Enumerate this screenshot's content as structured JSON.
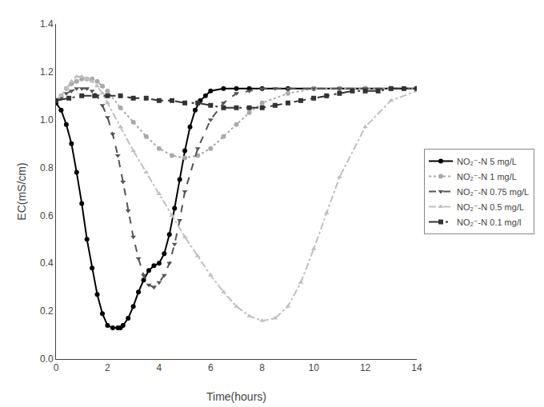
{
  "chart_data": {
    "type": "line",
    "xlabel": "Time(hours)",
    "ylabel": "EC(mS/cm)",
    "xlim": [
      0,
      14
    ],
    "ylim": [
      0.0,
      1.4
    ],
    "xticks": [
      0,
      2,
      4,
      6,
      8,
      10,
      12,
      14
    ],
    "yticks": [
      {
        "value": 0.0,
        "label": "0.0"
      },
      0.2,
      0.4,
      0.6,
      0.8,
      {
        "value": 1.0,
        "label": "1.0"
      },
      1.2,
      1.4
    ],
    "grid": false,
    "legend": "right",
    "series": [
      {
        "name": "NO₂⁻-N 5 mg/L",
        "color": "#000000",
        "line_style": "solid",
        "marker": "circle",
        "x": [
          0,
          0.2,
          0.4,
          0.6,
          0.8,
          1.0,
          1.2,
          1.4,
          1.6,
          1.8,
          2.0,
          2.2,
          2.4,
          2.5,
          2.6,
          2.8,
          3.0,
          3.2,
          3.4,
          3.6,
          3.8,
          4.0,
          4.2,
          4.4,
          4.6,
          4.8,
          5.0,
          5.2,
          5.4,
          5.6,
          5.8,
          6.0,
          6.5,
          7.0,
          7.5,
          8.0,
          9.0,
          10.0,
          11.0,
          12.0,
          13.0,
          14.0
        ],
        "values": [
          1.07,
          1.04,
          0.98,
          0.9,
          0.78,
          0.65,
          0.5,
          0.38,
          0.27,
          0.19,
          0.14,
          0.13,
          0.13,
          0.13,
          0.14,
          0.17,
          0.22,
          0.28,
          0.33,
          0.37,
          0.39,
          0.4,
          0.44,
          0.52,
          0.63,
          0.75,
          0.87,
          0.97,
          1.04,
          1.08,
          1.1,
          1.12,
          1.13,
          1.13,
          1.13,
          1.13,
          1.13,
          1.13,
          1.13,
          1.13,
          1.13,
          1.13
        ]
      },
      {
        "name": "NO₂⁻-N 1 mg/L",
        "color": "#aaaaaa",
        "line_style": "dotted",
        "marker": "circle",
        "x": [
          0,
          0.2,
          0.4,
          0.6,
          0.8,
          1.0,
          1.2,
          1.4,
          1.6,
          1.8,
          2.0,
          2.5,
          3.0,
          3.5,
          4.0,
          4.5,
          5.0,
          5.5,
          6.0,
          6.5,
          7.0,
          7.5,
          8.0,
          9.0,
          10.0,
          11.0,
          12.0,
          13.0,
          14.0
        ],
        "values": [
          1.08,
          1.1,
          1.13,
          1.15,
          1.16,
          1.17,
          1.17,
          1.17,
          1.16,
          1.14,
          1.12,
          1.05,
          0.99,
          0.93,
          0.88,
          0.85,
          0.84,
          0.85,
          0.88,
          0.93,
          0.98,
          1.03,
          1.07,
          1.11,
          1.13,
          1.13,
          1.13,
          1.13,
          1.13
        ]
      },
      {
        "name": "NO₂⁻-N 0.75 mg/L",
        "color": "#555555",
        "line_style": "dashed",
        "marker": "triangle-down",
        "x": [
          0,
          0.2,
          0.4,
          0.6,
          0.8,
          1.0,
          1.2,
          1.4,
          1.6,
          1.8,
          2.0,
          2.2,
          2.4,
          2.6,
          2.8,
          3.0,
          3.2,
          3.4,
          3.6,
          3.8,
          4.0,
          4.2,
          4.4,
          4.6,
          4.8,
          5.0,
          5.5,
          6.0,
          6.5,
          7.0,
          7.5,
          8.0,
          8.5,
          9.0,
          10.0,
          11.0,
          12.0,
          13.0,
          14.0
        ],
        "values": [
          1.08,
          1.09,
          1.11,
          1.12,
          1.13,
          1.13,
          1.13,
          1.12,
          1.1,
          1.06,
          1.01,
          0.94,
          0.85,
          0.74,
          0.62,
          0.51,
          0.42,
          0.35,
          0.31,
          0.3,
          0.32,
          0.35,
          0.4,
          0.48,
          0.58,
          0.7,
          0.88,
          1.0,
          1.07,
          1.11,
          1.12,
          1.13,
          1.13,
          1.13,
          1.13,
          1.13,
          1.13,
          1.13,
          1.13
        ]
      },
      {
        "name": "NO₂⁻-N 0.5 mg/L",
        "color": "#c0c0c0",
        "line_style": "dashdot",
        "marker": "triangle-up",
        "x": [
          0,
          0.2,
          0.4,
          0.6,
          0.8,
          1.0,
          1.2,
          1.4,
          1.6,
          1.8,
          2.0,
          2.5,
          3.0,
          3.5,
          4.0,
          4.5,
          5.0,
          5.5,
          6.0,
          6.5,
          7.0,
          7.5,
          8.0,
          8.5,
          9.0,
          9.5,
          10.0,
          10.5,
          11.0,
          12.0,
          13.0,
          14.0
        ],
        "values": [
          1.08,
          1.1,
          1.13,
          1.16,
          1.18,
          1.18,
          1.17,
          1.16,
          1.14,
          1.11,
          1.07,
          0.97,
          0.87,
          0.78,
          0.69,
          0.6,
          0.51,
          0.43,
          0.35,
          0.28,
          0.22,
          0.18,
          0.16,
          0.17,
          0.22,
          0.32,
          0.46,
          0.61,
          0.76,
          0.97,
          1.08,
          1.12
        ]
      },
      {
        "name": "NO₂⁻-N 0.1 mg/l",
        "color": "#333333",
        "line_style": "longdashdot",
        "marker": "square",
        "x": [
          0,
          0.5,
          1.0,
          1.5,
          2.0,
          2.5,
          3.0,
          3.5,
          4.0,
          4.5,
          5.0,
          5.5,
          6.0,
          6.5,
          7.0,
          7.5,
          8.0,
          8.5,
          9.0,
          9.5,
          10.0,
          10.5,
          11.0,
          11.5,
          12.0,
          12.5,
          13.0,
          13.5,
          14.0
        ],
        "values": [
          1.08,
          1.09,
          1.1,
          1.1,
          1.1,
          1.1,
          1.09,
          1.09,
          1.08,
          1.08,
          1.07,
          1.07,
          1.06,
          1.05,
          1.05,
          1.05,
          1.05,
          1.06,
          1.07,
          1.08,
          1.09,
          1.1,
          1.11,
          1.12,
          1.12,
          1.12,
          1.13,
          1.13,
          1.13
        ]
      }
    ]
  }
}
